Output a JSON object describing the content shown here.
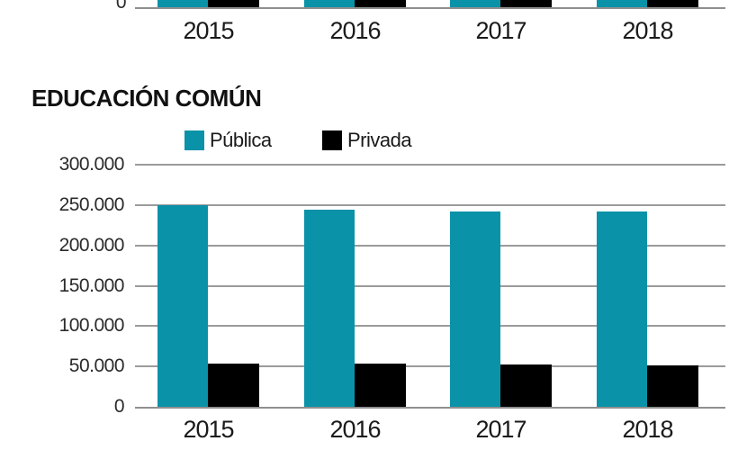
{
  "colors": {
    "publica": "#0a92a8",
    "privada": "#000000",
    "gridline": "#9b9b9b",
    "axis_line": "#8f8f8f",
    "background": "#ffffff"
  },
  "chart_data": [
    {
      "id": "top-chart-cropped",
      "type": "bar",
      "title": "",
      "note": "Chart is cropped at the top edge of the screenshot; only the 0 baseline, the bottoms of the grouped bars and the year labels are visible. Bar values not visible.",
      "categories": [
        "2015",
        "2016",
        "2017",
        "2018"
      ],
      "series": [
        {
          "name": "Pública",
          "color": "#0a92a8",
          "values": [
            null,
            null,
            null,
            null
          ]
        },
        {
          "name": "Privada",
          "color": "#000000",
          "values": [
            null,
            null,
            null,
            null
          ]
        }
      ],
      "y_zero_label": "0",
      "grid": true,
      "legend_position": "none"
    },
    {
      "id": "educacion-comun",
      "type": "bar",
      "title": "EDUCACIÓN COMÚN",
      "categories": [
        "2015",
        "2016",
        "2017",
        "2018"
      ],
      "series": [
        {
          "name": "Pública",
          "color": "#0a92a8",
          "values": [
            250000,
            244000,
            242000,
            242000
          ]
        },
        {
          "name": "Privada",
          "color": "#000000",
          "values": [
            53000,
            53000,
            52000,
            51000
          ]
        }
      ],
      "ylim": [
        0,
        300000
      ],
      "yticks": [
        {
          "value": 300000,
          "label": "300.000"
        },
        {
          "value": 250000,
          "label": "250.000"
        },
        {
          "value": 200000,
          "label": "200.000"
        },
        {
          "value": 150000,
          "label": "150.000"
        },
        {
          "value": 100000,
          "label": "100.000"
        },
        {
          "value": 50000,
          "label": "50.000"
        },
        {
          "value": 0,
          "label": "0"
        }
      ],
      "xlabel": "",
      "ylabel": "",
      "grid": true,
      "legend_position": "top",
      "legend": [
        {
          "name": "Pública",
          "color": "#0a92a8"
        },
        {
          "name": "Privada",
          "color": "#000000"
        }
      ]
    }
  ]
}
